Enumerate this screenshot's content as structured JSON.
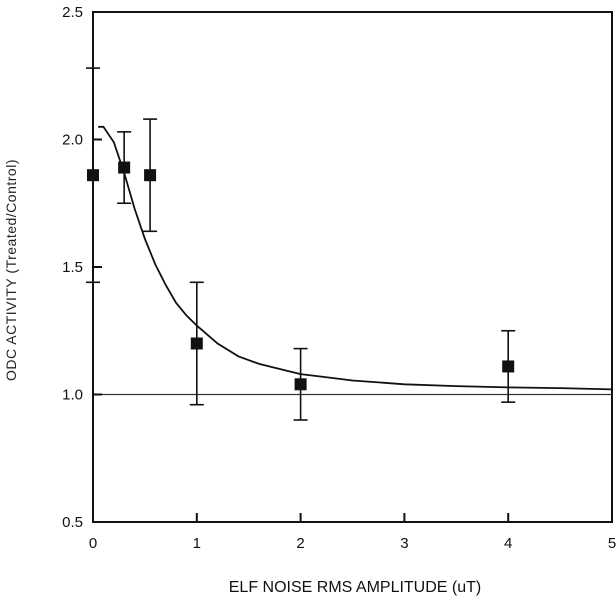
{
  "chart_data": {
    "type": "scatter",
    "title": "",
    "xlabel": "ELF NOISE RMS AMPLITUDE (uT)",
    "ylabel": "ODC ACTIVITY (Treated/Control)",
    "xlim": [
      0,
      5
    ],
    "ylim": [
      0.5,
      2.5
    ],
    "x_ticks": [
      "0",
      "1",
      "2",
      "3",
      "4",
      "5"
    ],
    "y_ticks": [
      "0.5",
      "1.0",
      "1.5",
      "2.0",
      "2.5"
    ],
    "grid": false,
    "legend": null,
    "series": [
      {
        "type": "points_with_error_bars",
        "marker": "filled-square",
        "x": [
          0,
          0.3,
          0.55,
          1.0,
          2.0,
          4.0
        ],
        "y": [
          1.86,
          1.89,
          1.86,
          1.2,
          1.04,
          1.11
        ],
        "y_err": [
          0.42,
          0.14,
          0.22,
          0.24,
          0.14,
          0.14
        ]
      },
      {
        "type": "fitted_curve",
        "x": [
          0.05,
          0.1,
          0.2,
          0.3,
          0.4,
          0.5,
          0.6,
          0.7,
          0.8,
          0.9,
          1.0,
          1.2,
          1.4,
          1.6,
          1.8,
          2.0,
          2.2,
          2.5,
          3.0,
          3.5,
          4.0,
          4.5,
          5.0
        ],
        "y": [
          2.05,
          2.05,
          1.99,
          1.87,
          1.73,
          1.61,
          1.51,
          1.43,
          1.36,
          1.31,
          1.27,
          1.2,
          1.15,
          1.12,
          1.1,
          1.08,
          1.07,
          1.055,
          1.04,
          1.033,
          1.028,
          1.025,
          1.02
        ]
      },
      {
        "type": "reference_line",
        "y": 1.0
      }
    ]
  }
}
